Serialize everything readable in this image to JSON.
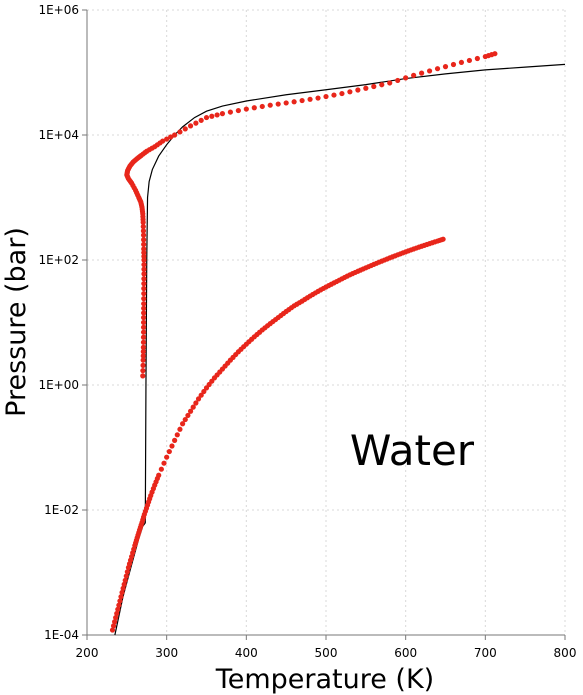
{
  "chart_data": {
    "type": "scatter",
    "title": "",
    "xlabel": "Temperature (K)",
    "ylabel": "Pressure (bar)",
    "annotation": "Water",
    "xlim": [
      200,
      800
    ],
    "ylim": [
      0.0001,
      1000000
    ],
    "y_scale": "log",
    "grid": true,
    "legend": "none",
    "x_ticks": [
      "200",
      "300",
      "400",
      "500",
      "600",
      "700",
      "800"
    ],
    "y_ticks": [
      "1E-04",
      "1E-02",
      "1E+00",
      "1E+02",
      "1E+04",
      "1E+06"
    ],
    "colors": {
      "points": "#e8261b",
      "line": "#000000",
      "grid": "#d9d9d9"
    },
    "series": [
      {
        "kind": "line",
        "x": [
          235,
          245,
          255,
          265,
          270,
          273,
          273.16,
          274,
          275,
          276,
          278,
          282,
          290,
          300,
          310,
          320,
          335,
          350,
          370,
          400,
          450,
          500,
          550,
          600,
          650,
          700,
          750,
          800
        ],
        "y": [
          0.0001,
          0.0004,
          0.0012,
          0.0035,
          0.0055,
          0.0062,
          0.00612,
          1,
          100,
          1000,
          1800,
          2800,
          4600,
          7000,
          10000,
          13500,
          19000,
          24000,
          29000,
          35000,
          44000,
          53000,
          64000,
          80000,
          95000,
          110000,
          122000,
          135000
        ]
      },
      {
        "kind": "points",
        "x": [
          232,
          236,
          240,
          244,
          248,
          252,
          256,
          260,
          263,
          266,
          269,
          272,
          276,
          280,
          285,
          290,
          300,
          310,
          320,
          330,
          340,
          350,
          360,
          370,
          380,
          390,
          400,
          410,
          420,
          430,
          440,
          450,
          460,
          470,
          480,
          490,
          500,
          510,
          520,
          530,
          540,
          550,
          560,
          570,
          580,
          590,
          600,
          610,
          620,
          630,
          640,
          647
        ],
        "y": [
          0.00012,
          0.00019,
          0.0003,
          0.00048,
          0.00075,
          0.0012,
          0.0018,
          0.0027,
          0.0036,
          0.0048,
          0.0063,
          0.0085,
          0.012,
          0.017,
          0.025,
          0.036,
          0.07,
          0.13,
          0.24,
          0.38,
          0.6,
          0.9,
          1.3,
          1.8,
          2.5,
          3.4,
          4.5,
          5.9,
          7.6,
          9.6,
          12,
          15,
          18.5,
          22,
          26.5,
          31.5,
          37,
          43,
          50,
          58,
          66,
          75,
          85,
          96,
          108,
          121,
          135,
          150,
          166,
          183,
          201,
          215
        ]
      },
      {
        "kind": "points",
        "x": [
          270,
          270.5,
          270.8,
          271,
          271,
          271.2,
          271.3,
          271.5,
          271.5,
          271.2,
          271,
          270.5,
          270,
          269,
          267.5,
          265,
          261,
          256,
          252,
          250,
          251,
          254,
          258,
          263,
          268,
          275,
          285,
          295,
          310,
          330,
          350,
          370,
          400,
          430,
          460,
          490,
          520,
          550,
          580,
          610,
          640,
          670,
          700,
          712
        ],
        "y": [
          1.4,
          2.5,
          4,
          7,
          12,
          20,
          35,
          60,
          100,
          150,
          250,
          400,
          550,
          700,
          850,
          1000,
          1300,
          1700,
          2000,
          2300,
          2700,
          3200,
          3700,
          4200,
          4700,
          5500,
          6500,
          8000,
          10000,
          14000,
          19000,
          22000,
          26000,
          30000,
          34000,
          39000,
          46000,
          56000,
          68000,
          90000,
          115000,
          145000,
          180000,
          200000
        ]
      }
    ]
  }
}
